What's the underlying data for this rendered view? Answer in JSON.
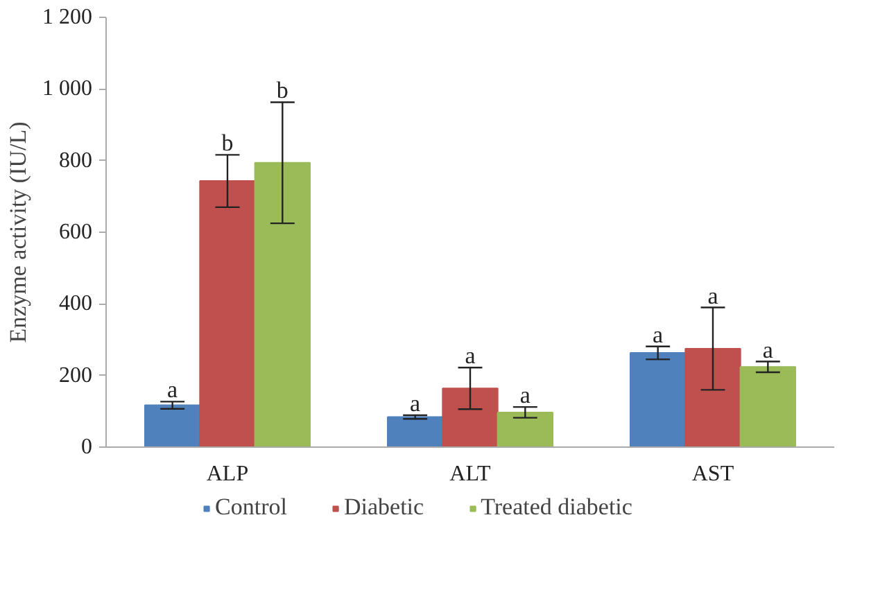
{
  "chart_data": {
    "type": "bar",
    "ylabel": "Enzyme activity (IU/L)",
    "categories": [
      "ALP",
      "ALT",
      "AST"
    ],
    "series": [
      {
        "name": "Control",
        "color": "#4f81bd",
        "values": [
          117,
          84,
          263
        ],
        "errors": [
          10,
          5,
          18
        ]
      },
      {
        "name": "Diabetic",
        "color": "#c0504d",
        "values": [
          743,
          164,
          275
        ],
        "errors": [
          73,
          58,
          115
        ]
      },
      {
        "name": "Treated diabetic",
        "color": "#9bbb59",
        "values": [
          794,
          97,
          224
        ],
        "errors": [
          169,
          15,
          15
        ]
      }
    ],
    "ylim": [
      0,
      1200
    ],
    "yticks": [
      0,
      200,
      400,
      600,
      800,
      {
        "value": 1000,
        "label": "1 000"
      },
      {
        "value": 1200,
        "label": "1 200"
      }
    ],
    "grid": false,
    "legend": "bottom",
    "annotations": [
      "a",
      "b",
      "b",
      "a",
      "a",
      "a",
      "a",
      "a",
      "a"
    ]
  }
}
